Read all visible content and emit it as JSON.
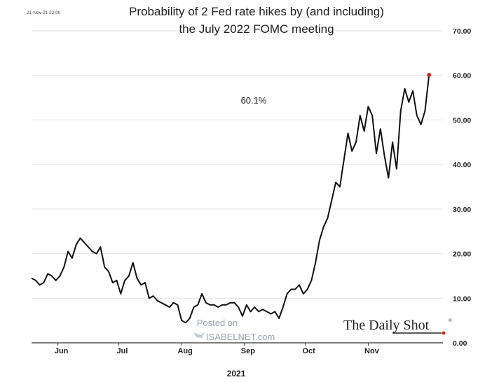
{
  "chart_data": {
    "type": "line",
    "title_line1": "Probability of 2 Fed rate hikes by (and including)",
    "title_line2": "the July 2022 FOMC meeting",
    "timestamp": "21-Nov-21 22:00",
    "xlabel": "2021",
    "ylabel": "",
    "ylim": [
      0,
      70
    ],
    "yticks": [
      "0.00",
      "10.00",
      "20.00",
      "30.00",
      "40.00",
      "50.00",
      "60.00",
      "70.00"
    ],
    "y_axis_side": "right",
    "grid": true,
    "x_ticks": [
      {
        "label": "Jun",
        "date": "2021-06-01"
      },
      {
        "label": "Jul",
        "date": "2021-07-01"
      },
      {
        "label": "Aug",
        "date": "2021-08-01"
      },
      {
        "label": "Sep",
        "date": "2021-09-01"
      },
      {
        "label": "Oct",
        "date": "2021-10-01"
      },
      {
        "label": "Nov",
        "date": "2021-11-01"
      }
    ],
    "annotation": "60.1%",
    "last_value": 60.1,
    "series": [
      {
        "color": "#111111",
        "points": [
          [
            "2021-05-19",
            14.5
          ],
          [
            "2021-05-21",
            14
          ],
          [
            "2021-05-23",
            13
          ],
          [
            "2021-05-25",
            13.5
          ],
          [
            "2021-05-27",
            15.5
          ],
          [
            "2021-05-29",
            15
          ],
          [
            "2021-05-31",
            14
          ],
          [
            "2021-06-02",
            15
          ],
          [
            "2021-06-04",
            17
          ],
          [
            "2021-06-06",
            20.5
          ],
          [
            "2021-06-08",
            19
          ],
          [
            "2021-06-10",
            22
          ],
          [
            "2021-06-12",
            23.5
          ],
          [
            "2021-06-14",
            22.5
          ],
          [
            "2021-06-16",
            21.5
          ],
          [
            "2021-06-18",
            20.5
          ],
          [
            "2021-06-20",
            20
          ],
          [
            "2021-06-22",
            21.5
          ],
          [
            "2021-06-24",
            17
          ],
          [
            "2021-06-26",
            16
          ],
          [
            "2021-06-28",
            13.5
          ],
          [
            "2021-06-30",
            14
          ],
          [
            "2021-07-02",
            11
          ],
          [
            "2021-07-04",
            14
          ],
          [
            "2021-07-06",
            15
          ],
          [
            "2021-07-08",
            18
          ],
          [
            "2021-07-10",
            14.5
          ],
          [
            "2021-07-12",
            13
          ],
          [
            "2021-07-14",
            13.5
          ],
          [
            "2021-07-16",
            10
          ],
          [
            "2021-07-18",
            10.5
          ],
          [
            "2021-07-20",
            9.5
          ],
          [
            "2021-07-22",
            9
          ],
          [
            "2021-07-24",
            8.5
          ],
          [
            "2021-07-26",
            8
          ],
          [
            "2021-07-28",
            9
          ],
          [
            "2021-07-30",
            8.5
          ],
          [
            "2021-08-01",
            5
          ],
          [
            "2021-08-03",
            4.5
          ],
          [
            "2021-08-05",
            5.5
          ],
          [
            "2021-08-07",
            8
          ],
          [
            "2021-08-09",
            8.5
          ],
          [
            "2021-08-11",
            11
          ],
          [
            "2021-08-13",
            9
          ],
          [
            "2021-08-15",
            8.5
          ],
          [
            "2021-08-17",
            8.5
          ],
          [
            "2021-08-19",
            8
          ],
          [
            "2021-08-21",
            8.5
          ],
          [
            "2021-08-23",
            8.5
          ],
          [
            "2021-08-25",
            9
          ],
          [
            "2021-08-27",
            9
          ],
          [
            "2021-08-29",
            8
          ],
          [
            "2021-08-31",
            6
          ],
          [
            "2021-09-02",
            8.5
          ],
          [
            "2021-09-04",
            7
          ],
          [
            "2021-09-06",
            8
          ],
          [
            "2021-09-08",
            7
          ],
          [
            "2021-09-10",
            7.5
          ],
          [
            "2021-09-12",
            7
          ],
          [
            "2021-09-14",
            6.5
          ],
          [
            "2021-09-16",
            7
          ],
          [
            "2021-09-18",
            5.5
          ],
          [
            "2021-09-20",
            8
          ],
          [
            "2021-09-22",
            11
          ],
          [
            "2021-09-24",
            12
          ],
          [
            "2021-09-26",
            12
          ],
          [
            "2021-09-28",
            13
          ],
          [
            "2021-09-30",
            11
          ],
          [
            "2021-10-02",
            12
          ],
          [
            "2021-10-04",
            14
          ],
          [
            "2021-10-06",
            18
          ],
          [
            "2021-10-08",
            23
          ],
          [
            "2021-10-10",
            26
          ],
          [
            "2021-10-12",
            28
          ],
          [
            "2021-10-14",
            32
          ],
          [
            "2021-10-16",
            36
          ],
          [
            "2021-10-18",
            35
          ],
          [
            "2021-10-20",
            41
          ],
          [
            "2021-10-22",
            47
          ],
          [
            "2021-10-24",
            43
          ],
          [
            "2021-10-26",
            45
          ],
          [
            "2021-10-28",
            51
          ],
          [
            "2021-10-30",
            47.5
          ],
          [
            "2021-11-01",
            53
          ],
          [
            "2021-11-03",
            51
          ],
          [
            "2021-11-05",
            42.5
          ],
          [
            "2021-11-07",
            48
          ],
          [
            "2021-11-09",
            42
          ],
          [
            "2021-11-11",
            37
          ],
          [
            "2021-11-13",
            45
          ],
          [
            "2021-11-15",
            39
          ],
          [
            "2021-11-17",
            52
          ],
          [
            "2021-11-19",
            57
          ],
          [
            "2021-11-21",
            54
          ],
          [
            "2021-11-23",
            56.5
          ],
          [
            "2021-11-25",
            51
          ],
          [
            "2021-11-27",
            49
          ],
          [
            "2021-11-29",
            52
          ],
          [
            "2021-12-01",
            60.1
          ]
        ]
      }
    ]
  },
  "watermark": {
    "line1": "Posted on",
    "line2": "ISABELNET.com"
  },
  "brand": {
    "name": "The Daily Shot",
    "mark": "®"
  },
  "colors": {
    "line": "#111111",
    "endpoint": "#cc2b1f",
    "grid": "#dfe2e6",
    "watermark": "#9aa3ad"
  }
}
